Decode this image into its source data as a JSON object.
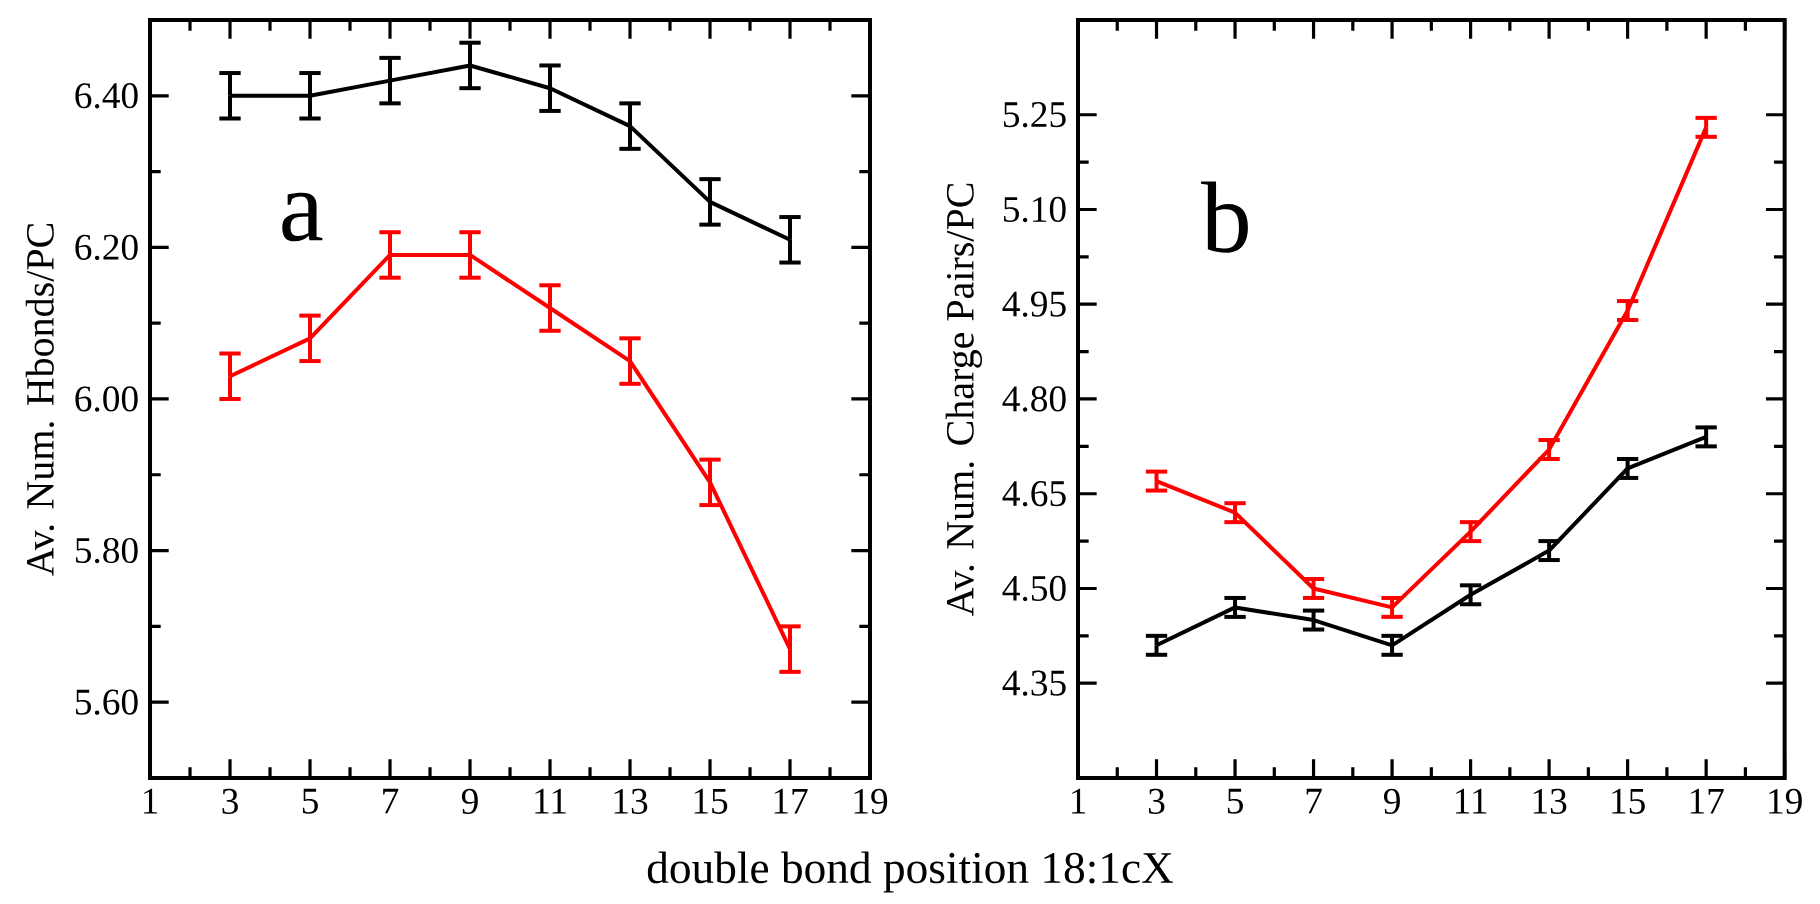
{
  "chart_data": [
    {
      "type": "line",
      "xlabel": "double bond position 18:1cX",
      "ylabel": "Av. Num. Hbonds/PC",
      "annotations": [
        "a"
      ],
      "x": [
        3,
        5,
        7,
        9,
        11,
        13,
        15,
        17
      ],
      "series": [
        {
          "color": "#000000",
          "values": [
            6.4,
            6.4,
            6.42,
            6.44,
            6.41,
            6.36,
            6.26,
            6.21
          ],
          "errors": [
            0.03,
            0.03,
            0.03,
            0.03,
            0.03,
            0.03,
            0.03,
            0.03
          ]
        },
        {
          "color": "#ff0000",
          "values": [
            6.03,
            6.08,
            6.19,
            6.19,
            6.12,
            6.05,
            5.89,
            5.67
          ],
          "errors": [
            0.03,
            0.03,
            0.03,
            0.03,
            0.03,
            0.03,
            0.03,
            0.03
          ]
        }
      ],
      "xlim": [
        1,
        19
      ],
      "xticks": [
        1,
        3,
        5,
        7,
        9,
        11,
        13,
        15,
        17,
        19
      ],
      "ylim": [
        5.5,
        6.5
      ],
      "yticks": [
        {
          "value": 5.6,
          "label": "5.60"
        },
        {
          "value": 5.8,
          "label": "5.80"
        },
        {
          "value": 6.0,
          "label": "6.00"
        },
        {
          "value": 6.2,
          "label": "6.20"
        },
        {
          "value": 6.4,
          "label": "6.40"
        }
      ],
      "marker": "none",
      "line_style": "solid"
    },
    {
      "type": "line",
      "ylabel": "Av. Num. Charge Pairs/PC",
      "annotations": [
        "b"
      ],
      "x": [
        3,
        5,
        7,
        9,
        11,
        13,
        15,
        17
      ],
      "series": [
        {
          "color": "#ff0000",
          "values": [
            4.67,
            4.62,
            4.5,
            4.47,
            4.59,
            4.72,
            4.94,
            5.23
          ],
          "errors": [
            0.015,
            0.015,
            0.015,
            0.015,
            0.015,
            0.015,
            0.015,
            0.015
          ]
        },
        {
          "color": "#000000",
          "values": [
            4.41,
            4.47,
            4.45,
            4.41,
            4.49,
            4.56,
            4.69,
            4.74
          ],
          "errors": [
            0.015,
            0.015,
            0.015,
            0.015,
            0.015,
            0.015,
            0.015,
            0.015
          ]
        }
      ],
      "xlim": [
        1,
        19
      ],
      "xticks": [
        1,
        3,
        5,
        7,
        9,
        11,
        13,
        15,
        17,
        19
      ],
      "ylim": [
        4.2,
        5.4
      ],
      "yticks": [
        {
          "value": 4.35,
          "label": "4.35"
        },
        {
          "value": 4.5,
          "label": "4.50"
        },
        {
          "value": 4.65,
          "label": "4.65"
        },
        {
          "value": 4.8,
          "label": "4.80"
        },
        {
          "value": 4.95,
          "label": "4.95"
        },
        {
          "value": 5.1,
          "label": "5.10"
        },
        {
          "value": 5.25,
          "label": "5.25"
        }
      ],
      "marker": "none",
      "line_style": "solid"
    }
  ]
}
